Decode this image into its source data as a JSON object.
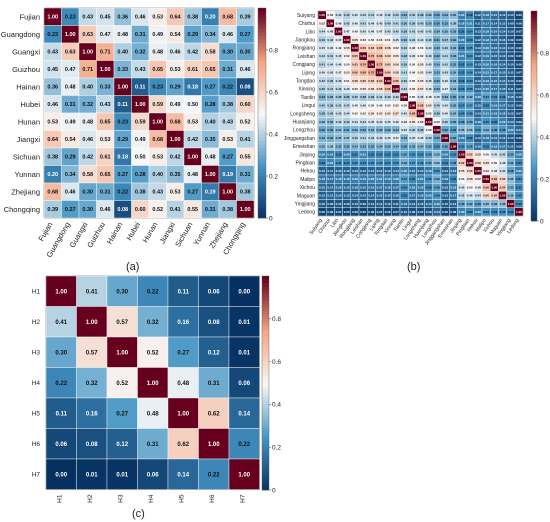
{
  "colors": {
    "low": "#053061",
    "mid_low": "#4393c3",
    "mid": "#f7f7f7",
    "mid_high": "#f4a582",
    "high": "#67001f"
  },
  "chart_data": [
    {
      "type": "heatmap",
      "panel_label": "(a)",
      "rows": [
        "Fujian",
        "Guangdong",
        "Guangxi",
        "Guizhou",
        "Hainan",
        "Hubei",
        "Hunan",
        "Jiangxi",
        "Sichuan",
        "Yunnan",
        "Zhejiang",
        "Chongqing"
      ],
      "cols": [
        "Fujian",
        "Guangdong",
        "Guangxi",
        "Guizhou",
        "Hainan",
        "Hubei",
        "Hunan",
        "Jiangxi",
        "Sichuan",
        "Yunnan",
        "Zhejiang",
        "Chongqing"
      ],
      "values": [
        [
          1.0,
          0.23,
          0.43,
          0.45,
          0.36,
          0.46,
          0.53,
          0.64,
          0.38,
          0.2,
          0.68,
          0.39
        ],
        [
          0.23,
          1.0,
          0.63,
          0.47,
          0.48,
          0.31,
          0.49,
          0.54,
          0.29,
          0.34,
          0.46,
          0.27
        ],
        [
          0.43,
          0.63,
          1.0,
          0.71,
          0.4,
          0.32,
          0.48,
          0.46,
          0.42,
          0.58,
          0.3,
          0.3
        ],
        [
          0.45,
          0.47,
          0.71,
          1.0,
          0.33,
          0.43,
          0.65,
          0.53,
          0.61,
          0.65,
          0.31,
          0.46
        ],
        [
          0.36,
          0.48,
          0.4,
          0.33,
          1.0,
          0.11,
          0.23,
          0.29,
          0.18,
          0.27,
          0.22,
          0.08
        ],
        [
          0.46,
          0.31,
          0.32,
          0.43,
          0.11,
          1.0,
          0.59,
          0.49,
          0.5,
          0.28,
          0.38,
          0.6
        ],
        [
          0.53,
          0.49,
          0.48,
          0.65,
          0.23,
          0.59,
          1.0,
          0.68,
          0.53,
          0.4,
          0.43,
          0.52
        ],
        [
          0.64,
          0.54,
          0.46,
          0.53,
          0.29,
          0.49,
          0.68,
          1.0,
          0.42,
          0.35,
          0.53,
          0.41
        ],
        [
          0.38,
          0.29,
          0.42,
          0.61,
          0.18,
          0.5,
          0.53,
          0.42,
          1.0,
          0.48,
          0.27,
          0.55
        ],
        [
          0.2,
          0.34,
          0.58,
          0.65,
          0.27,
          0.28,
          0.4,
          0.35,
          0.48,
          1.0,
          0.19,
          0.31
        ],
        [
          0.68,
          0.46,
          0.3,
          0.31,
          0.22,
          0.38,
          0.43,
          0.53,
          0.27,
          0.19,
          1.0,
          0.38
        ],
        [
          0.39,
          0.27,
          0.3,
          0.46,
          0.08,
          0.6,
          0.52,
          0.41,
          0.55,
          0.31,
          0.38,
          1.0
        ]
      ],
      "colorbar_ticks": [
        "0.8",
        "0.6",
        "0.4",
        "0.2",
        "0"
      ]
    },
    {
      "type": "heatmap",
      "panel_label": "(b)",
      "rows": [
        "Suiyang",
        "Chishui",
        "Libo",
        "Jiangkou",
        "Rongjiang",
        "Leishan",
        "Congjiang",
        "Liping",
        "Tongdao",
        "Xinning",
        "Tianlin",
        "Lingui",
        "Longsheng",
        "Huanjiang",
        "Longzhou",
        "Jinggangshan",
        "Emeishan",
        "Jinping",
        "Pingbian",
        "Hekou",
        "Malipo",
        "Xichou",
        "Maguan",
        "Yingjiang",
        "Ledong"
      ],
      "cols": [
        "Suiyang",
        "Chishui",
        "Libo",
        "Jiangkou",
        "Rongjiang",
        "Leishan",
        "Congjiang",
        "Liping",
        "Tongdao",
        "Xinning",
        "Tianlin",
        "Lingui",
        "Longsheng",
        "Huanjiang",
        "Longzhou",
        "Jinggangshan",
        "Emeishan",
        "Jinping",
        "Pingbian",
        "Hekou",
        "Malipo",
        "Xichou",
        "Maguan",
        "Yingjiang",
        "Ledong"
      ],
      "values": [
        [
          1.0,
          0.52,
          0.44,
          0.4,
          0.45,
          0.43,
          0.41,
          0.46,
          0.42,
          0.4,
          0.33,
          0.4,
          0.38,
          0.36,
          0.3,
          0.33,
          0.35,
          0.2,
          0.22,
          0.12,
          0.18,
          0.15,
          0.12,
          0.1,
          0.05
        ],
        [
          0.52,
          1.0,
          0.48,
          0.42,
          0.46,
          0.41,
          0.44,
          0.45,
          0.4,
          0.41,
          0.36,
          0.39,
          0.4,
          0.35,
          0.3,
          0.32,
          0.38,
          0.18,
          0.21,
          0.11,
          0.17,
          0.14,
          0.13,
          0.09,
          0.06
        ],
        [
          0.44,
          0.48,
          1.0,
          0.47,
          0.49,
          0.45,
          0.46,
          0.47,
          0.43,
          0.42,
          0.38,
          0.41,
          0.43,
          0.42,
          0.34,
          0.35,
          0.33,
          0.22,
          0.24,
          0.13,
          0.19,
          0.16,
          0.14,
          0.1,
          0.07
        ],
        [
          0.4,
          0.42,
          0.47,
          1.0,
          0.55,
          0.52,
          0.5,
          0.53,
          0.51,
          0.45,
          0.36,
          0.42,
          0.44,
          0.4,
          0.31,
          0.37,
          0.32,
          0.2,
          0.23,
          0.12,
          0.18,
          0.15,
          0.13,
          0.09,
          0.05
        ],
        [
          0.45,
          0.46,
          0.49,
          0.55,
          1.0,
          0.65,
          0.63,
          0.66,
          0.58,
          0.52,
          0.4,
          0.48,
          0.5,
          0.44,
          0.33,
          0.4,
          0.34,
          0.22,
          0.25,
          0.13,
          0.2,
          0.16,
          0.14,
          0.1,
          0.06
        ],
        [
          0.43,
          0.41,
          0.45,
          0.52,
          0.65,
          1.0,
          0.7,
          0.68,
          0.6,
          0.55,
          0.38,
          0.46,
          0.52,
          0.43,
          0.32,
          0.41,
          0.33,
          0.21,
          0.24,
          0.12,
          0.19,
          0.15,
          0.13,
          0.09,
          0.05
        ],
        [
          0.41,
          0.44,
          0.46,
          0.5,
          0.63,
          0.7,
          1.0,
          0.72,
          0.62,
          0.56,
          0.39,
          0.5,
          0.55,
          0.45,
          0.34,
          0.42,
          0.32,
          0.22,
          0.25,
          0.13,
          0.2,
          0.16,
          0.14,
          0.1,
          0.06
        ],
        [
          0.46,
          0.45,
          0.47,
          0.53,
          0.66,
          0.68,
          0.72,
          1.0,
          0.64,
          0.58,
          0.41,
          0.49,
          0.53,
          0.44,
          0.33,
          0.43,
          0.34,
          0.23,
          0.26,
          0.14,
          0.21,
          0.17,
          0.15,
          0.11,
          0.07
        ],
        [
          0.42,
          0.4,
          0.43,
          0.51,
          0.58,
          0.6,
          0.62,
          0.64,
          1.0,
          0.66,
          0.4,
          0.5,
          0.55,
          0.45,
          0.32,
          0.45,
          0.33,
          0.22,
          0.24,
          0.13,
          0.19,
          0.16,
          0.14,
          0.1,
          0.06
        ],
        [
          0.4,
          0.41,
          0.42,
          0.45,
          0.52,
          0.55,
          0.56,
          0.58,
          0.66,
          1.0,
          0.42,
          0.52,
          0.57,
          0.46,
          0.33,
          0.47,
          0.34,
          0.23,
          0.25,
          0.14,
          0.2,
          0.17,
          0.15,
          0.11,
          0.07
        ],
        [
          0.33,
          0.36,
          0.38,
          0.36,
          0.4,
          0.38,
          0.39,
          0.41,
          0.4,
          0.42,
          1.0,
          0.5,
          0.45,
          0.48,
          0.45,
          0.33,
          0.3,
          0.3,
          0.32,
          0.2,
          0.27,
          0.24,
          0.22,
          0.16,
          0.1
        ],
        [
          0.4,
          0.39,
          0.41,
          0.42,
          0.48,
          0.46,
          0.5,
          0.49,
          0.5,
          0.52,
          0.5,
          1.0,
          0.68,
          0.55,
          0.4,
          0.45,
          0.33,
          0.25,
          0.27,
          0.15,
          0.22,
          0.19,
          0.17,
          0.12,
          0.08
        ],
        [
          0.38,
          0.4,
          0.43,
          0.44,
          0.5,
          0.52,
          0.55,
          0.53,
          0.55,
          0.57,
          0.45,
          0.68,
          1.0,
          0.52,
          0.38,
          0.46,
          0.34,
          0.24,
          0.26,
          0.14,
          0.21,
          0.18,
          0.16,
          0.12,
          0.07
        ],
        [
          0.36,
          0.35,
          0.42,
          0.4,
          0.44,
          0.43,
          0.45,
          0.44,
          0.45,
          0.46,
          0.48,
          0.55,
          0.52,
          1.0,
          0.5,
          0.4,
          0.32,
          0.28,
          0.3,
          0.18,
          0.25,
          0.22,
          0.2,
          0.14,
          0.09
        ],
        [
          0.3,
          0.3,
          0.34,
          0.31,
          0.33,
          0.32,
          0.34,
          0.33,
          0.32,
          0.33,
          0.45,
          0.4,
          0.38,
          0.5,
          1.0,
          0.3,
          0.26,
          0.35,
          0.36,
          0.25,
          0.32,
          0.28,
          0.26,
          0.2,
          0.14
        ],
        [
          0.33,
          0.32,
          0.35,
          0.37,
          0.4,
          0.41,
          0.42,
          0.43,
          0.45,
          0.47,
          0.33,
          0.45,
          0.46,
          0.4,
          0.3,
          1.0,
          0.3,
          0.2,
          0.22,
          0.12,
          0.18,
          0.15,
          0.13,
          0.1,
          0.06
        ],
        [
          0.35,
          0.38,
          0.33,
          0.32,
          0.34,
          0.33,
          0.32,
          0.34,
          0.33,
          0.34,
          0.3,
          0.33,
          0.34,
          0.32,
          0.26,
          0.3,
          1.0,
          0.25,
          0.28,
          0.16,
          0.22,
          0.19,
          0.17,
          0.12,
          0.08
        ],
        [
          0.2,
          0.18,
          0.22,
          0.2,
          0.22,
          0.21,
          0.22,
          0.23,
          0.22,
          0.23,
          0.3,
          0.25,
          0.24,
          0.28,
          0.35,
          0.2,
          0.25,
          1.0,
          0.62,
          0.55,
          0.5,
          0.45,
          0.42,
          0.3,
          0.2
        ],
        [
          0.22,
          0.21,
          0.24,
          0.23,
          0.25,
          0.24,
          0.25,
          0.26,
          0.24,
          0.25,
          0.32,
          0.27,
          0.26,
          0.3,
          0.36,
          0.22,
          0.28,
          0.62,
          1.0,
          0.58,
          0.56,
          0.5,
          0.46,
          0.32,
          0.22
        ],
        [
          0.12,
          0.11,
          0.13,
          0.12,
          0.13,
          0.12,
          0.13,
          0.14,
          0.13,
          0.14,
          0.2,
          0.15,
          0.14,
          0.18,
          0.25,
          0.12,
          0.16,
          0.55,
          0.58,
          1.0,
          0.52,
          0.48,
          0.44,
          0.28,
          0.2
        ],
        [
          0.18,
          0.17,
          0.19,
          0.18,
          0.2,
          0.19,
          0.2,
          0.21,
          0.19,
          0.2,
          0.27,
          0.22,
          0.21,
          0.25,
          0.32,
          0.18,
          0.22,
          0.5,
          0.56,
          0.52,
          1.0,
          0.66,
          0.6,
          0.35,
          0.24
        ],
        [
          0.15,
          0.14,
          0.16,
          0.15,
          0.16,
          0.15,
          0.16,
          0.17,
          0.16,
          0.17,
          0.24,
          0.19,
          0.18,
          0.22,
          0.28,
          0.15,
          0.19,
          0.45,
          0.5,
          0.48,
          0.66,
          1.0,
          0.64,
          0.33,
          0.23
        ],
        [
          0.12,
          0.13,
          0.14,
          0.13,
          0.14,
          0.13,
          0.14,
          0.15,
          0.14,
          0.15,
          0.22,
          0.17,
          0.16,
          0.2,
          0.26,
          0.13,
          0.17,
          0.42,
          0.46,
          0.44,
          0.6,
          0.64,
          1.0,
          0.36,
          0.25
        ],
        [
          0.1,
          0.09,
          0.1,
          0.09,
          0.1,
          0.09,
          0.1,
          0.11,
          0.1,
          0.11,
          0.16,
          0.12,
          0.12,
          0.14,
          0.2,
          0.1,
          0.12,
          0.3,
          0.32,
          0.28,
          0.35,
          0.33,
          0.36,
          1.0,
          0.22
        ],
        [
          0.05,
          0.06,
          0.07,
          0.05,
          0.06,
          0.05,
          0.06,
          0.07,
          0.06,
          0.07,
          0.1,
          0.08,
          0.07,
          0.09,
          0.14,
          0.06,
          0.08,
          0.2,
          0.22,
          0.2,
          0.24,
          0.23,
          0.25,
          0.22,
          1.0
        ]
      ],
      "colorbar_ticks": [
        "0.8",
        "0.6",
        "0.4",
        "0.2",
        "0"
      ]
    },
    {
      "type": "heatmap",
      "panel_label": "(c)",
      "rows": [
        "H1",
        "H2",
        "H3",
        "H4",
        "H5",
        "H6",
        "H7"
      ],
      "cols": [
        "H1",
        "H2",
        "H3",
        "H4",
        "H5",
        "H6",
        "H7"
      ],
      "values": [
        [
          1.0,
          0.41,
          0.3,
          0.22,
          0.11,
          0.06,
          0.0
        ],
        [
          0.41,
          1.0,
          0.57,
          0.32,
          0.16,
          0.08,
          0.01
        ],
        [
          0.3,
          0.57,
          1.0,
          0.52,
          0.27,
          0.12,
          0.01
        ],
        [
          0.22,
          0.32,
          0.52,
          1.0,
          0.48,
          0.31,
          0.06
        ],
        [
          0.11,
          0.16,
          0.27,
          0.48,
          1.0,
          0.62,
          0.14
        ],
        [
          0.06,
          0.08,
          0.12,
          0.31,
          0.62,
          1.0,
          0.22
        ],
        [
          0.0,
          0.01,
          0.01,
          0.06,
          0.14,
          0.22,
          1.0
        ]
      ],
      "colorbar_ticks": [
        "0.8",
        "0.6",
        "0.4",
        "0.2",
        "0"
      ]
    }
  ]
}
